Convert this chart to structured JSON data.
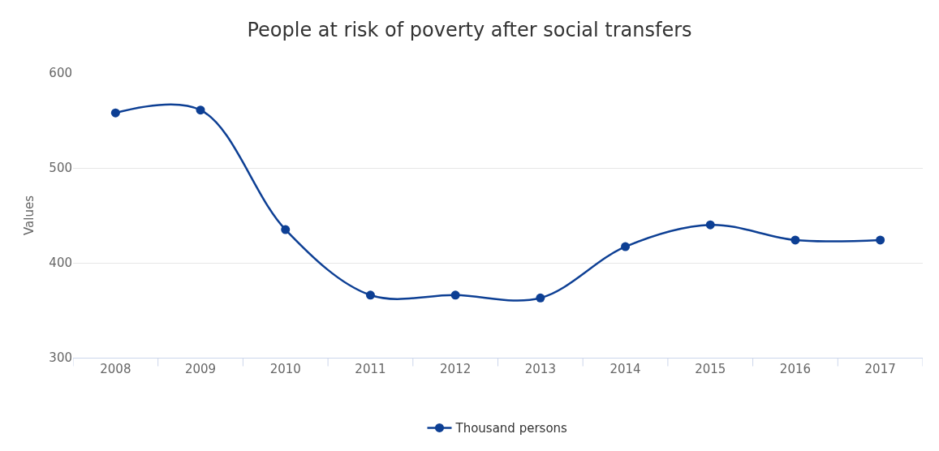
{
  "chart_data": {
    "type": "line",
    "title": "People at risk of poverty after social transfers",
    "ylabel": "Values",
    "categories": [
      "2008",
      "2009",
      "2010",
      "2011",
      "2012",
      "2013",
      "2014",
      "2015",
      "2016",
      "2017"
    ],
    "series": [
      {
        "name": "Thousand persons",
        "color": "#0d3f94",
        "values": [
          558,
          561,
          435,
          366,
          366,
          363,
          417,
          440,
          424,
          424
        ]
      }
    ],
    "ylim": [
      300,
      600
    ],
    "yticks": [
      300,
      400,
      500,
      600
    ],
    "grid": "y",
    "legend": "bottom",
    "marker": "circle",
    "line_style": "solid"
  }
}
